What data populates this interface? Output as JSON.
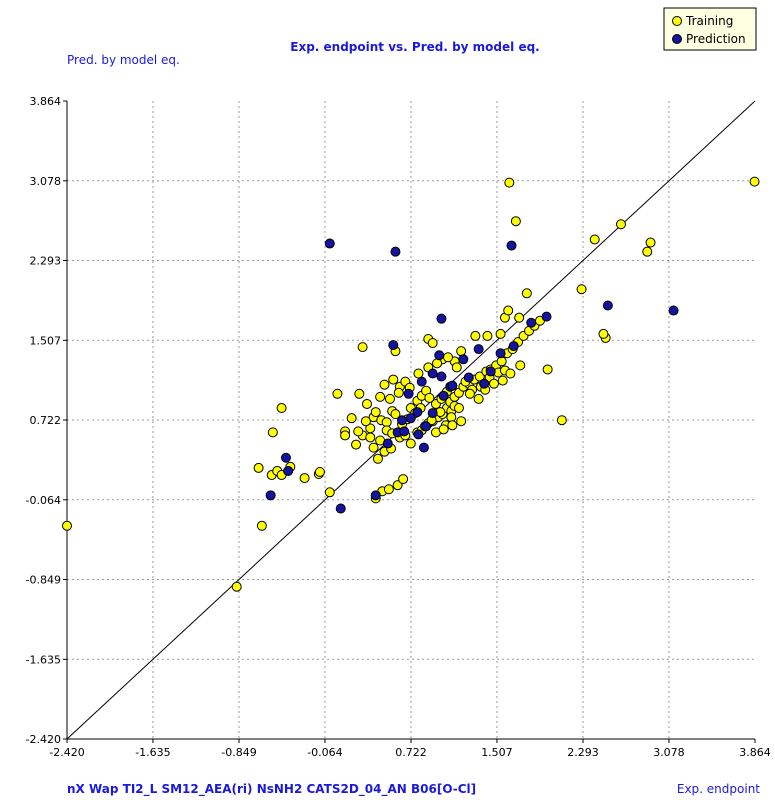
{
  "chart_data": {
    "type": "scatter",
    "title": "Exp. endpoint vs. Pred. by model eq.",
    "xlabel": "Exp. endpoint",
    "ylabel": "Pred. by model eq.",
    "descriptors": "nX  Wap  TI2_L  SM12_AEA(ri)  NsNH2  CATS2D_04_AN  B06[O-Cl]",
    "xlim": [
      -2.42,
      3.864
    ],
    "ylim": [
      -2.42,
      3.864
    ],
    "x_ticks": [
      "-2.420",
      "-1.635",
      "-0.849",
      "-0.064",
      "0.722",
      "1.507",
      "2.293",
      "3.078",
      "3.864"
    ],
    "y_ticks": [
      "-2.420",
      "-1.635",
      "-0.849",
      "-0.064",
      "0.722",
      "1.507",
      "2.293",
      "3.078",
      "3.864"
    ],
    "tick_values": [
      -2.42,
      -1.635,
      -0.849,
      -0.064,
      0.722,
      1.507,
      2.293,
      3.078,
      3.864
    ],
    "grid": true,
    "legend_position": "top-right",
    "reference_line": {
      "from": [
        -2.42,
        -2.42
      ],
      "to": [
        3.864,
        3.864
      ]
    },
    "series": [
      {
        "name": "Training",
        "color": "#ffff00",
        "points": [
          [
            -2.42,
            -0.32
          ],
          [
            -0.64,
            -0.32
          ],
          [
            -0.87,
            -0.92
          ],
          [
            -0.25,
            0.15
          ],
          [
            -0.67,
            0.25
          ],
          [
            -0.55,
            0.18
          ],
          [
            -0.54,
            0.6
          ],
          [
            -0.46,
            0.84
          ],
          [
            -0.5,
            0.22
          ],
          [
            -0.38,
            0.26
          ],
          [
            -0.46,
            0.18
          ],
          [
            -0.12,
            0.19
          ],
          [
            -0.11,
            0.21
          ],
          [
            -0.02,
            0.01
          ],
          [
            0.12,
            0.61
          ],
          [
            0.22,
            0.48
          ],
          [
            0.28,
            0.57
          ],
          [
            0.35,
            0.55
          ],
          [
            0.12,
            0.57
          ],
          [
            0.32,
            0.88
          ],
          [
            0.25,
            0.98
          ],
          [
            0.35,
            0.64
          ],
          [
            0.38,
            0.75
          ],
          [
            0.45,
            0.72
          ],
          [
            0.5,
            0.7
          ],
          [
            0.55,
            0.81
          ],
          [
            0.58,
            0.78
          ],
          [
            0.62,
            0.55
          ],
          [
            0.67,
            0.57
          ],
          [
            0.72,
            0.49
          ],
          [
            0.78,
            0.6
          ],
          [
            0.82,
            0.62
          ],
          [
            0.88,
            0.69
          ],
          [
            0.92,
            0.71
          ],
          [
            0.97,
            0.75
          ],
          [
            1.01,
            0.78
          ],
          [
            1.05,
            0.84
          ],
          [
            1.08,
            0.9
          ],
          [
            1.12,
            0.95
          ],
          [
            1.16,
            0.99
          ],
          [
            1.2,
            1.05
          ],
          [
            1.25,
            1.08
          ],
          [
            1.3,
            1.12
          ],
          [
            1.35,
            1.15
          ],
          [
            1.41,
            1.2
          ],
          [
            1.45,
            1.22
          ],
          [
            1.5,
            1.26
          ],
          [
            1.55,
            1.3
          ],
          [
            1.6,
            1.38
          ],
          [
            1.65,
            1.42
          ],
          [
            1.7,
            1.49
          ],
          [
            1.75,
            1.55
          ],
          [
            1.8,
            1.6
          ],
          [
            1.85,
            1.65
          ],
          [
            1.9,
            1.7
          ],
          [
            0.28,
            1.44
          ],
          [
            0.58,
            1.4
          ],
          [
            0.88,
            1.52
          ],
          [
            0.92,
            1.48
          ],
          [
            1.01,
            1.32
          ],
          [
            1.12,
            1.3
          ],
          [
            1.18,
            1.4
          ],
          [
            1.31,
            1.55
          ],
          [
            1.42,
            1.55
          ],
          [
            1.54,
            1.57
          ],
          [
            1.58,
            1.73
          ],
          [
            1.61,
            1.8
          ],
          [
            1.71,
            1.73
          ],
          [
            1.78,
            1.97
          ],
          [
            1.62,
            3.06
          ],
          [
            1.68,
            2.68
          ],
          [
            2.4,
            2.5
          ],
          [
            2.64,
            2.65
          ],
          [
            2.88,
            2.38
          ],
          [
            2.91,
            2.47
          ],
          [
            3.86,
            3.07
          ],
          [
            2.28,
            2.01
          ],
          [
            2.5,
            1.53
          ],
          [
            2.48,
            1.57
          ],
          [
            1.97,
            1.22
          ],
          [
            2.1,
            0.72
          ],
          [
            0.72,
            0.84
          ],
          [
            0.78,
            0.91
          ],
          [
            0.82,
            0.96
          ],
          [
            0.86,
            1.01
          ],
          [
            0.89,
            0.94
          ],
          [
            0.95,
            0.88
          ],
          [
            1.0,
            0.93
          ],
          [
            1.05,
            1.0
          ],
          [
            1.09,
            0.81
          ],
          [
            1.12,
            0.86
          ],
          [
            0.62,
            1.05
          ],
          [
            0.67,
            1.1
          ],
          [
            0.71,
            1.04
          ],
          [
            0.79,
            1.18
          ],
          [
            0.88,
            1.24
          ],
          [
            0.96,
            1.28
          ],
          [
            1.06,
            1.34
          ],
          [
            1.14,
            1.24
          ],
          [
            1.22,
            1.1
          ],
          [
            1.28,
            1.02
          ],
          [
            1.36,
            1.05
          ],
          [
            1.44,
            1.14
          ],
          [
            1.52,
            1.19
          ],
          [
            1.58,
            1.21
          ],
          [
            0.38,
            0.45
          ],
          [
            0.44,
            0.52
          ],
          [
            0.5,
            0.62
          ],
          [
            0.55,
            0.59
          ],
          [
            0.64,
            0.68
          ],
          [
            0.69,
            0.73
          ],
          [
            0.76,
            0.79
          ],
          [
            0.81,
            0.84
          ],
          [
            0.85,
            0.66
          ],
          [
            0.91,
            0.72
          ],
          [
            0.99,
            0.8
          ],
          [
            1.04,
            0.67
          ],
          [
            1.09,
            0.75
          ],
          [
            1.16,
            0.84
          ],
          [
            0.05,
            0.98
          ],
          [
            0.18,
            0.74
          ],
          [
            0.24,
            0.61
          ],
          [
            0.31,
            0.71
          ],
          [
            0.4,
            0.8
          ],
          [
            0.44,
            0.95
          ],
          [
            0.48,
            1.07
          ],
          [
            0.53,
            0.93
          ],
          [
            0.56,
            1.12
          ],
          [
            0.61,
            0.99
          ],
          [
            0.4,
            -0.05
          ],
          [
            0.46,
            0.02
          ],
          [
            0.52,
            0.04
          ],
          [
            0.6,
            0.08
          ],
          [
            0.65,
            0.14
          ],
          [
            0.42,
            0.34
          ],
          [
            0.48,
            0.41
          ],
          [
            0.54,
            0.44
          ],
          [
            0.95,
            0.6
          ],
          [
            1.02,
            0.63
          ],
          [
            1.1,
            0.67
          ],
          [
            1.18,
            0.71
          ],
          [
            1.26,
            0.98
          ],
          [
            1.34,
            0.93
          ],
          [
            1.4,
            1.02
          ],
          [
            1.48,
            1.08
          ],
          [
            1.56,
            1.11
          ],
          [
            1.63,
            1.18
          ],
          [
            1.72,
            1.26
          ]
        ]
      },
      {
        "name": "Prediction",
        "color": "#1414a0",
        "points": [
          [
            -0.02,
            2.46
          ],
          [
            0.58,
            2.38
          ],
          [
            1.64,
            2.44
          ],
          [
            2.52,
            1.85
          ],
          [
            3.12,
            1.8
          ],
          [
            0.08,
            -0.15
          ],
          [
            0.4,
            -0.02
          ],
          [
            -0.56,
            -0.02
          ],
          [
            -0.42,
            0.35
          ],
          [
            -0.4,
            0.22
          ],
          [
            0.56,
            1.46
          ],
          [
            0.7,
            0.98
          ],
          [
            0.82,
            1.1
          ],
          [
            0.92,
            1.18
          ],
          [
            1.0,
            1.15
          ],
          [
            1.08,
            1.05
          ],
          [
            1.2,
            1.32
          ],
          [
            1.34,
            1.42
          ],
          [
            1.45,
            1.2
          ],
          [
            1.54,
            1.38
          ],
          [
            1.66,
            1.45
          ],
          [
            1.82,
            1.68
          ],
          [
            1.96,
            1.74
          ],
          [
            1.0,
            1.72
          ],
          [
            0.78,
            0.8
          ],
          [
            0.86,
            0.66
          ],
          [
            0.64,
            0.72
          ],
          [
            0.72,
            0.74
          ],
          [
            0.6,
            0.6
          ],
          [
            0.51,
            0.49
          ],
          [
            0.66,
            0.61
          ],
          [
            0.79,
            0.58
          ],
          [
            0.92,
            0.79
          ],
          [
            1.02,
            0.96
          ],
          [
            1.1,
            1.06
          ],
          [
            0.98,
            1.36
          ],
          [
            1.25,
            1.14
          ],
          [
            1.39,
            1.08
          ],
          [
            0.84,
            0.45
          ]
        ]
      }
    ]
  },
  "legend": {
    "training_label": "Training",
    "prediction_label": "Prediction"
  }
}
